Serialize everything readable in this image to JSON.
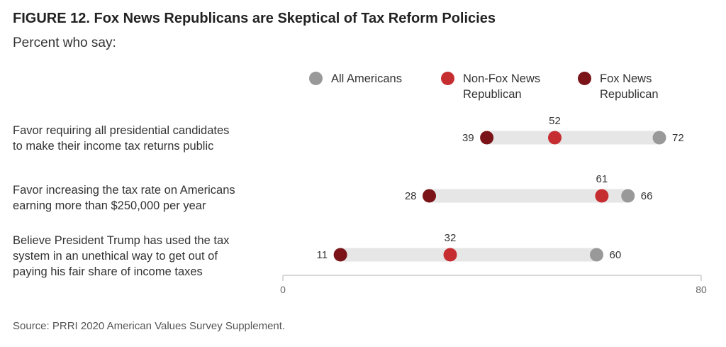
{
  "title": "FIGURE 12. Fox News Republicans are Skeptical of Tax Reform Policies",
  "subtitle": "Percent who say:",
  "source": "Source: PRRI 2020 American Values Survey Supplement.",
  "colors": {
    "all_americans": "#999999",
    "non_fox_republican": "#c62d31",
    "fox_republican": "#7a1418",
    "bar": "#e6e6e6",
    "axis": "#cccccc"
  },
  "chart_data": {
    "type": "dot",
    "xlim": [
      0,
      80
    ],
    "x_ticks": [
      "0",
      "80"
    ],
    "legend": [
      {
        "key": "all_americans",
        "label": "All Americans"
      },
      {
        "key": "non_fox_republican",
        "label": "Non-Fox News\nRepublican"
      },
      {
        "key": "fox_republican",
        "label": "Fox News\nRepublican"
      }
    ],
    "rows": [
      {
        "label": "Favor requiring all presidential candidates\nto make their income tax returns public",
        "values": {
          "all_americans": 72,
          "non_fox_republican": 52,
          "fox_republican": 39
        },
        "value_labels": {
          "all_americans": "72",
          "non_fox_republican": "52",
          "fox_republican": "39"
        }
      },
      {
        "label": "Favor increasing the tax rate on Americans\nearning more than $250,000 per year",
        "values": {
          "all_americans": 66,
          "non_fox_republican": 61,
          "fox_republican": 28
        },
        "value_labels": {
          "all_americans": "66",
          "non_fox_republican": "61",
          "fox_republican": "28"
        }
      },
      {
        "label": "Believe President Trump has used the tax\nsystem in an unethical way to get out of\npaying his fair share of income taxes",
        "values": {
          "all_americans": 60,
          "non_fox_republican": 32,
          "fox_republican": 11
        },
        "value_labels": {
          "all_americans": "60",
          "non_fox_republican": "32",
          "fox_republican": "11"
        }
      }
    ]
  }
}
